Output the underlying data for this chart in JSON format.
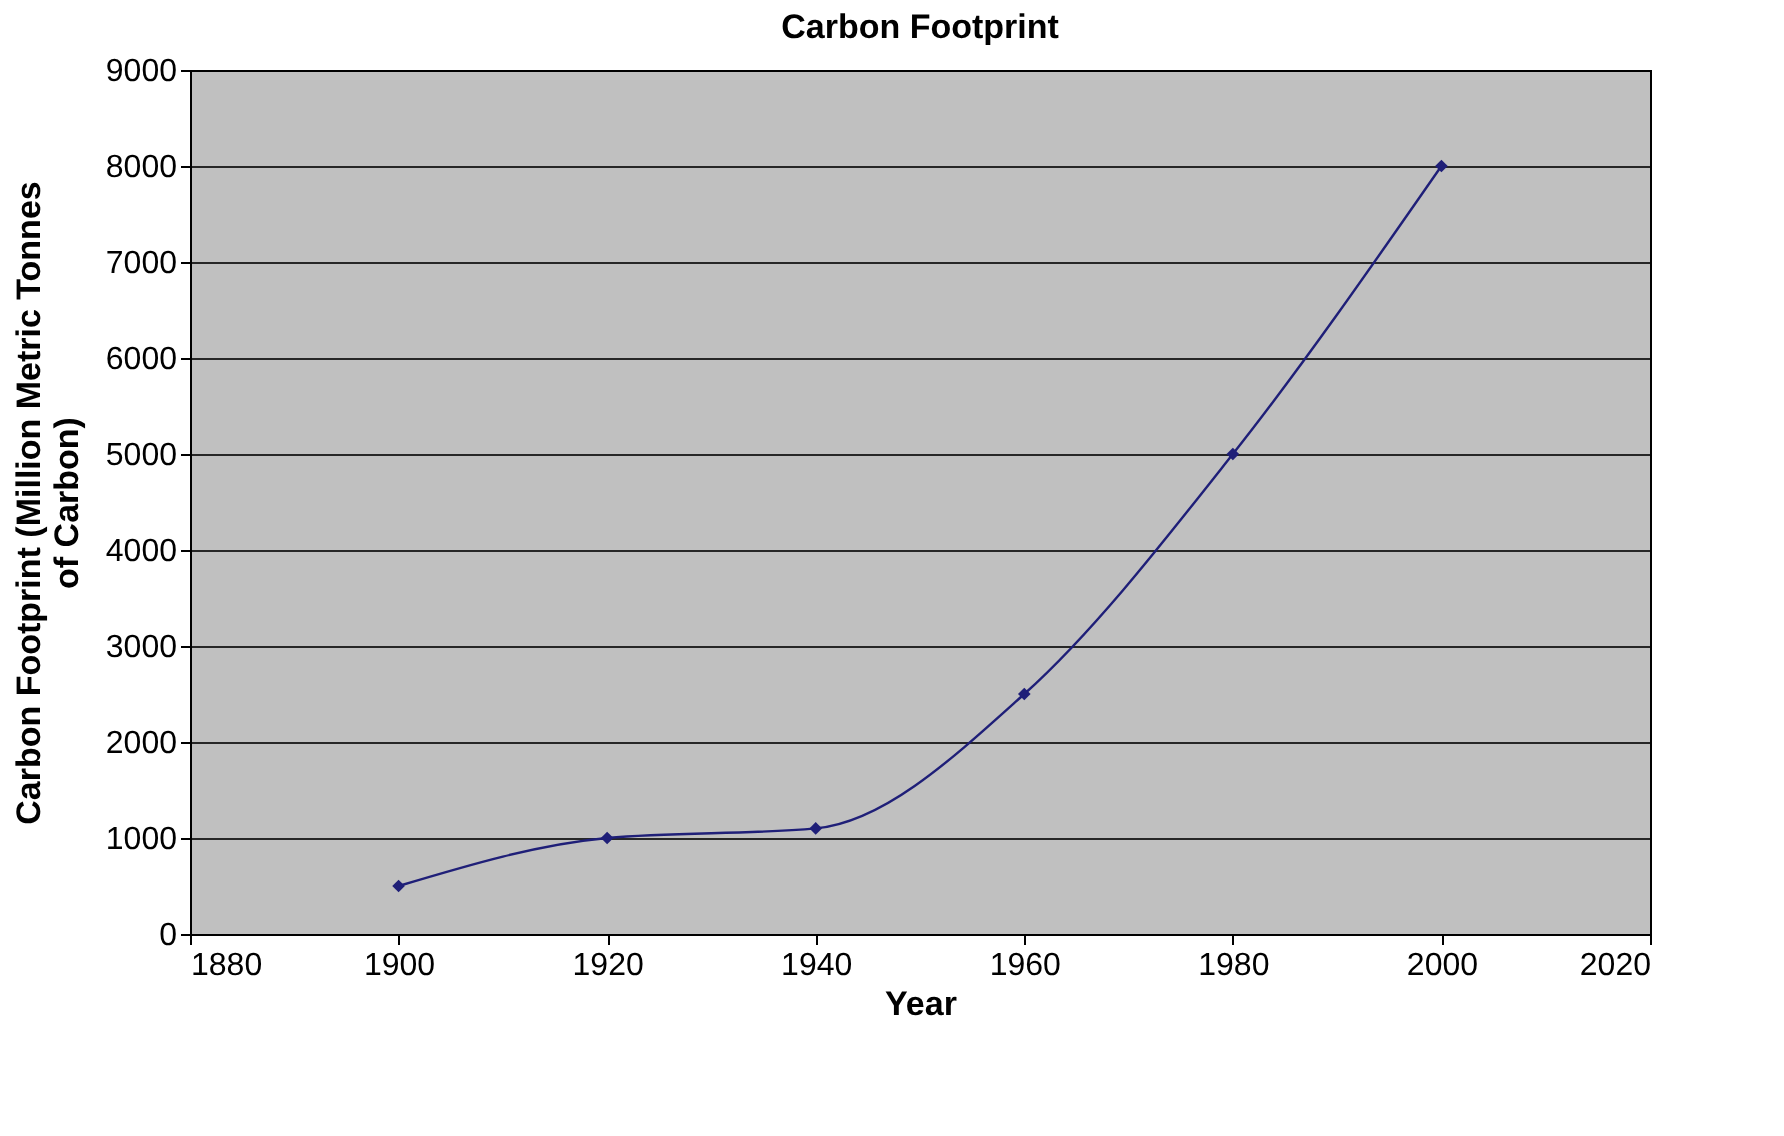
{
  "chart_data": {
    "type": "line",
    "title": "Carbon Footprint",
    "xlabel": "Year",
    "ylabel": "Carbon Footprint (Million Metric Tonnes of Carbon)",
    "x": [
      1900,
      1920,
      1940,
      1960,
      1980,
      2000
    ],
    "series": [
      {
        "color": "#1f1f78",
        "values": [
          500,
          1000,
          1100,
          2500,
          5000,
          8000
        ]
      }
    ],
    "xlim": [
      1880,
      2020
    ],
    "xticks": [
      1880,
      1900,
      1920,
      1940,
      1960,
      1980,
      2000,
      2020
    ],
    "ylim": [
      0,
      9000
    ],
    "yticks": [
      0,
      1000,
      2000,
      3000,
      4000,
      5000,
      6000,
      7000,
      8000,
      9000
    ],
    "grid": "y",
    "marker": "diamond",
    "line_style": "solid",
    "legend": false
  }
}
